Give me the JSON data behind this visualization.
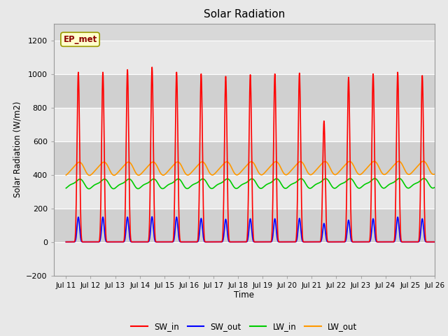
{
  "title": "Solar Radiation",
  "ylabel": "Solar Radiation (W/m2)",
  "xlabel": "Time",
  "xlim_start": 10.5,
  "xlim_end": 26,
  "ylim": [
    -200,
    1300
  ],
  "yticks": [
    -200,
    0,
    200,
    400,
    600,
    800,
    1000,
    1200
  ],
  "xtick_labels": [
    "Jul 11",
    "Jul 12",
    "Jul 13",
    "Jul 14",
    "Jul 15",
    "Jul 16",
    "Jul 17",
    "Jul 18",
    "Jul 19",
    "Jul 20",
    "Jul 21",
    "Jul 22",
    "Jul 23",
    "Jul 24",
    "Jul 25",
    "Jul 26"
  ],
  "xtick_positions": [
    11,
    12,
    13,
    14,
    15,
    16,
    17,
    18,
    19,
    20,
    21,
    22,
    23,
    24,
    25,
    26
  ],
  "background_color": "#e8e8e8",
  "plot_bg_color": "#d8d8d8",
  "band_light": "#e8e8e8",
  "band_dark": "#d0d0d0",
  "grid_color": "#cccccc",
  "series": {
    "SW_in": {
      "color": "#ff0000",
      "label": "SW_in"
    },
    "SW_out": {
      "color": "#0000ff",
      "label": "SW_out"
    },
    "LW_in": {
      "color": "#00cc00",
      "label": "LW_in"
    },
    "LW_out": {
      "color": "#ff9900",
      "label": "LW_out"
    }
  },
  "annotation_text": "EP_met",
  "n_days": 15,
  "day_start": 11,
  "pts_per_day": 240,
  "day_peak_SW_in": [
    1010,
    1010,
    1025,
    1040,
    1010,
    1000,
    985,
    995,
    1000,
    1005,
    720,
    980,
    1000,
    1010,
    990
  ],
  "day_peak_SW_out": [
    148,
    148,
    148,
    150,
    148,
    140,
    135,
    138,
    138,
    140,
    110,
    130,
    138,
    148,
    138
  ]
}
